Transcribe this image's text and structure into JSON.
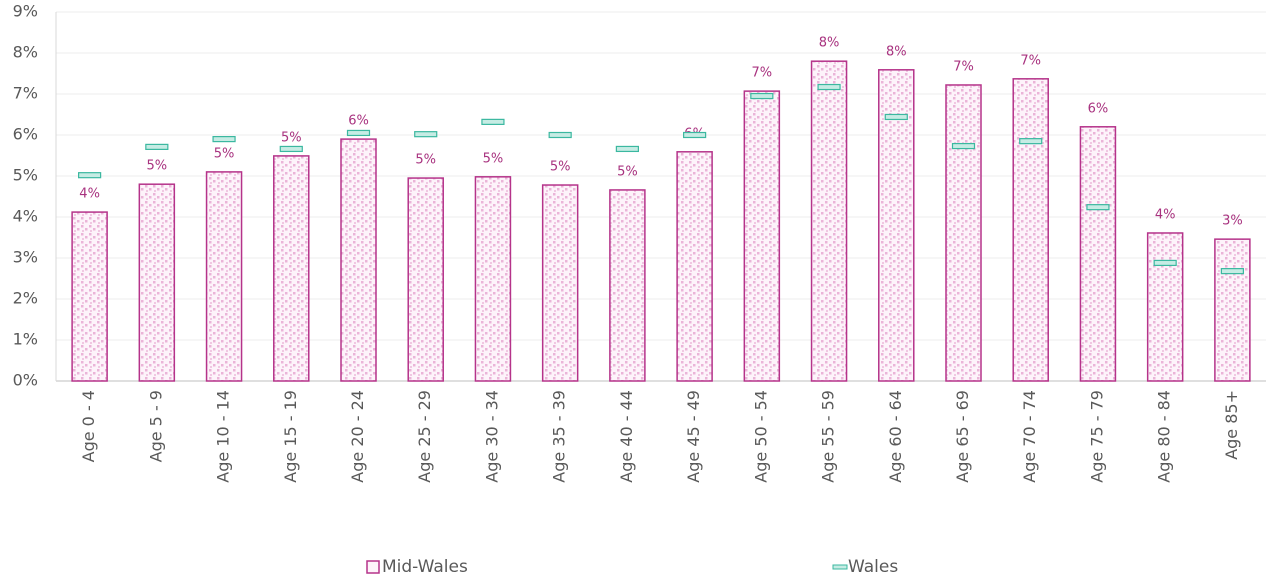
{
  "chart_data": {
    "type": "bar",
    "categories": [
      "Age 0 - 4",
      "Age 5 - 9",
      "Age 10 - 14",
      "Age 15 - 19",
      "Age 20 - 24",
      "Age 25 - 29",
      "Age 30 - 34",
      "Age 35 - 39",
      "Age 40 - 44",
      "Age 45 - 49",
      "Age 50 - 54",
      "Age 55 - 59",
      "Age 60 - 64",
      "Age 65 - 69",
      "Age 70 - 74",
      "Age 75 - 79",
      "Age 80 - 84",
      "Age 85+"
    ],
    "series": [
      {
        "name": "Mid-Wales",
        "type": "bar",
        "color": "#b5338a",
        "values": [
          4.12,
          4.8,
          5.1,
          5.49,
          5.9,
          4.95,
          4.98,
          4.78,
          4.66,
          5.59,
          7.07,
          7.8,
          7.59,
          7.22,
          7.37,
          6.2,
          3.61,
          3.46
        ],
        "value_labels": [
          "4%",
          "5%",
          "5%",
          "5%",
          "6%",
          "5%",
          "5%",
          "5%",
          "5%",
          "6%",
          "7%",
          "8%",
          "8%",
          "7%",
          "7%",
          "6%",
          "4%",
          "3%"
        ]
      },
      {
        "name": "Wales",
        "type": "marker",
        "color": "#3bb8a0",
        "values": [
          5.02,
          5.71,
          5.9,
          5.66,
          6.05,
          6.02,
          6.32,
          6.0,
          5.66,
          6.0,
          6.95,
          7.17,
          6.44,
          5.73,
          5.85,
          4.24,
          2.88,
          2.68
        ]
      }
    ],
    "ylim": [
      0,
      9
    ],
    "yticks": [
      {
        "value": 0,
        "label": "0%"
      },
      {
        "value": 1,
        "label": "1%"
      },
      {
        "value": 2,
        "label": "2%"
      },
      {
        "value": 3,
        "label": "3%"
      },
      {
        "value": 4,
        "label": "4%"
      },
      {
        "value": 5,
        "label": "5%"
      },
      {
        "value": 6,
        "label": "6%"
      },
      {
        "value": 7,
        "label": "7%"
      },
      {
        "value": 8,
        "label": "8%"
      },
      {
        "value": 9,
        "label": "9%"
      }
    ],
    "grid": true,
    "legend": "bottom"
  }
}
